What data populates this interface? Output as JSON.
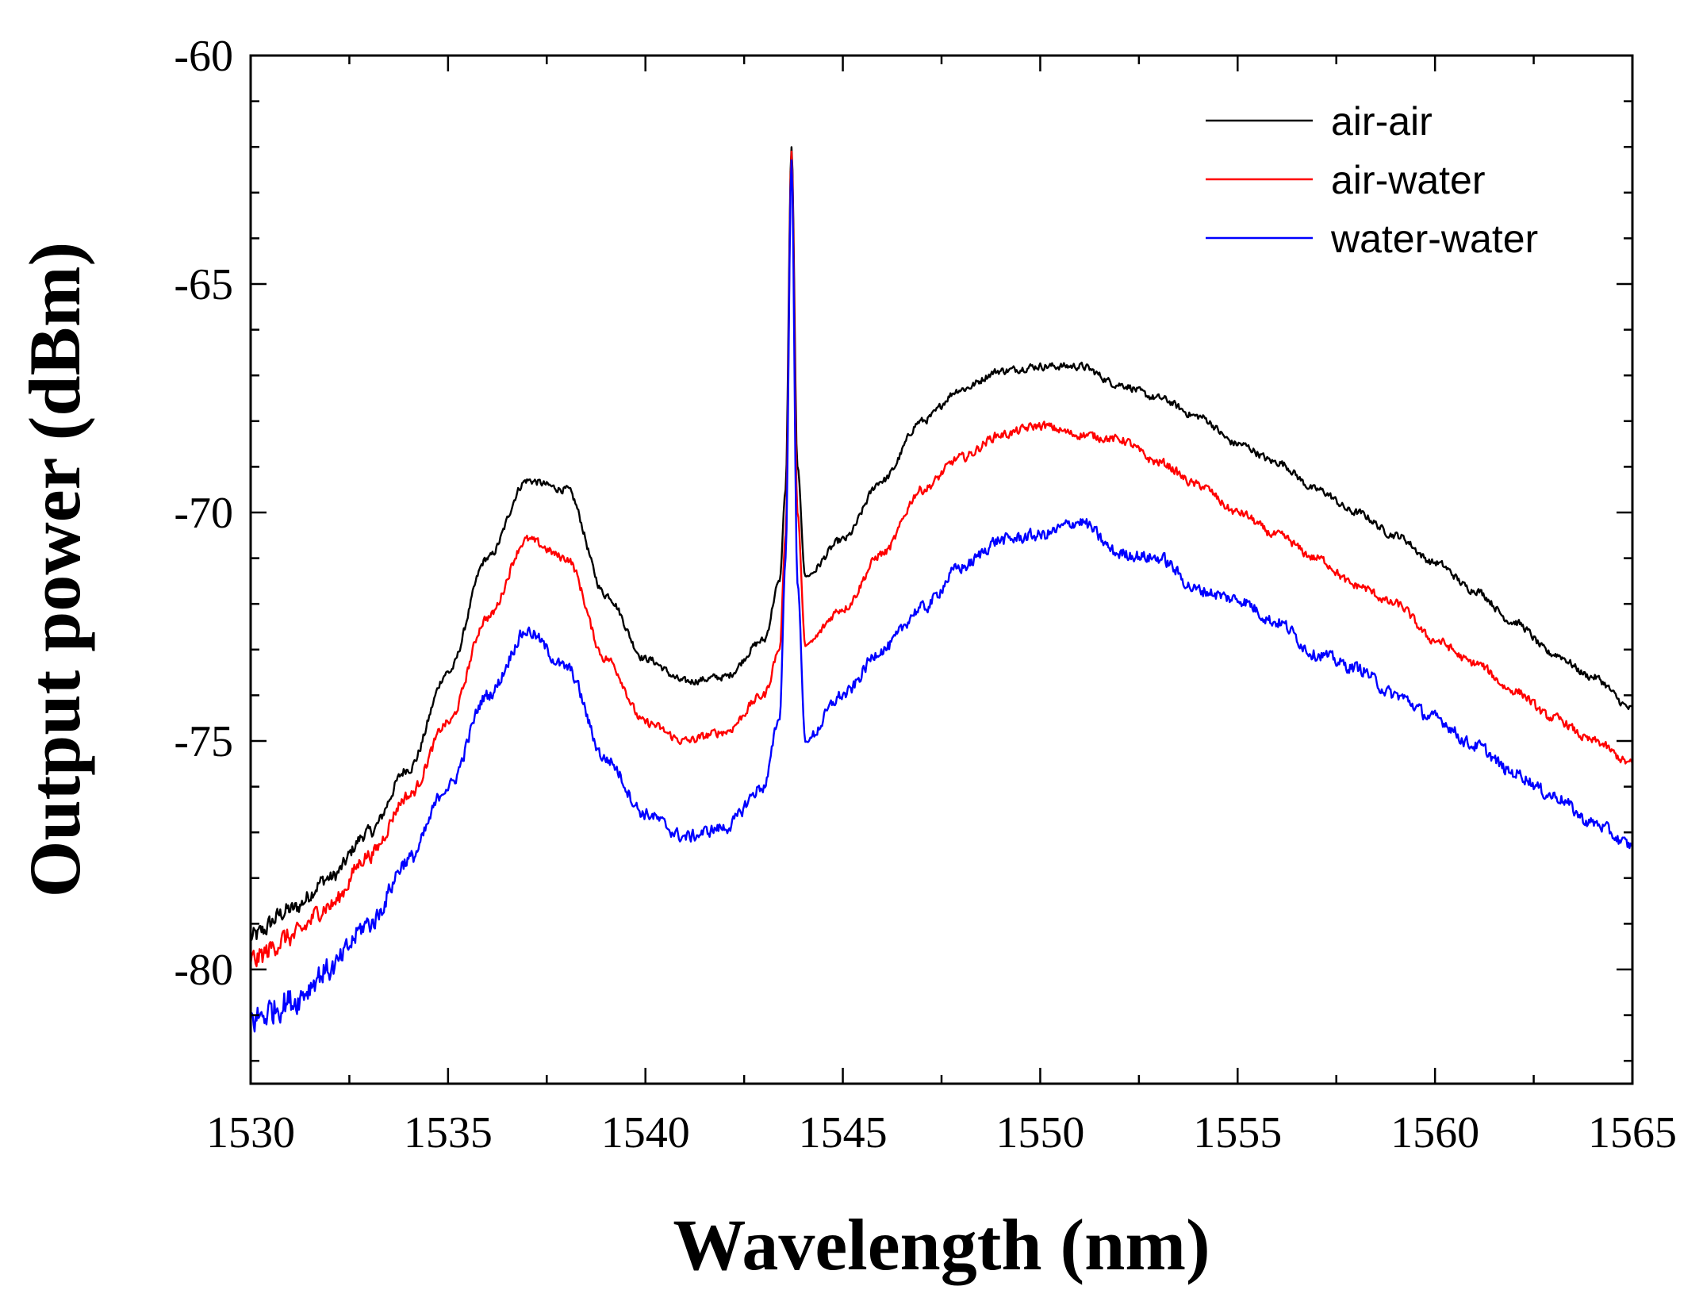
{
  "chart_data": {
    "type": "line",
    "title": "",
    "xlabel": "Wavelength (nm)",
    "ylabel": "Output power (dBm)",
    "xlim": [
      1530,
      1565
    ],
    "ylim": [
      -82.5,
      -60
    ],
    "xticks": [
      1530,
      1535,
      1540,
      1545,
      1550,
      1555,
      1560,
      1565
    ],
    "xtick_labels": [
      "1530",
      "1535",
      "1540",
      "1545",
      "1550",
      "1555",
      "1560",
      "1565"
    ],
    "yticks": [
      -60,
      -65,
      -70,
      -75,
      -80
    ],
    "ytick_labels": [
      "-60",
      "-65",
      "-70",
      "-75",
      "-80"
    ],
    "grid": false,
    "legend_position": "top-right",
    "series": [
      {
        "name": "air-air",
        "color": "#000000",
        "noise": 0.12,
        "points": [
          [
            1530,
            -79.3
          ],
          [
            1531,
            -78.7
          ],
          [
            1532,
            -78.0
          ],
          [
            1533,
            -77.0
          ],
          [
            1534,
            -75.6
          ],
          [
            1535,
            -73.5
          ],
          [
            1536,
            -71.0
          ],
          [
            1537,
            -69.3
          ],
          [
            1538,
            -69.5
          ],
          [
            1539,
            -71.8
          ],
          [
            1540,
            -73.2
          ],
          [
            1541,
            -73.7
          ],
          [
            1542,
            -73.6
          ],
          [
            1543,
            -72.8
          ],
          [
            1543.4,
            -71.5
          ],
          [
            1543.55,
            -69.5
          ],
          [
            1543.7,
            -62.0
          ],
          [
            1543.85,
            -69.0
          ],
          [
            1544.05,
            -71.4
          ],
          [
            1545,
            -70.6
          ],
          [
            1546,
            -69.3
          ],
          [
            1547,
            -68.0
          ],
          [
            1548,
            -67.3
          ],
          [
            1549,
            -66.9
          ],
          [
            1550,
            -66.8
          ],
          [
            1551,
            -66.8
          ],
          [
            1552,
            -67.2
          ],
          [
            1553,
            -67.5
          ],
          [
            1554,
            -67.9
          ],
          [
            1555,
            -68.5
          ],
          [
            1556,
            -68.9
          ],
          [
            1557,
            -69.5
          ],
          [
            1558,
            -70.0
          ],
          [
            1559,
            -70.5
          ],
          [
            1560,
            -71.1
          ],
          [
            1561,
            -71.7
          ],
          [
            1562,
            -72.4
          ],
          [
            1563,
            -73.1
          ],
          [
            1564,
            -73.6
          ],
          [
            1565,
            -74.3
          ]
        ]
      },
      {
        "name": "air-water",
        "color": "#ff0000",
        "noise": 0.14,
        "points": [
          [
            1530,
            -79.8
          ],
          [
            1531,
            -79.3
          ],
          [
            1532,
            -78.6
          ],
          [
            1533,
            -77.5
          ],
          [
            1534,
            -76.2
          ],
          [
            1535,
            -74.6
          ],
          [
            1536,
            -72.3
          ],
          [
            1537,
            -70.6
          ],
          [
            1538,
            -71.0
          ],
          [
            1539,
            -73.2
          ],
          [
            1540,
            -74.6
          ],
          [
            1541,
            -75.0
          ],
          [
            1542,
            -74.8
          ],
          [
            1543,
            -74.0
          ],
          [
            1543.4,
            -73.0
          ],
          [
            1543.55,
            -70.5
          ],
          [
            1543.7,
            -62.1
          ],
          [
            1543.85,
            -70.0
          ],
          [
            1544.05,
            -72.9
          ],
          [
            1545,
            -72.1
          ],
          [
            1546,
            -70.9
          ],
          [
            1547,
            -69.5
          ],
          [
            1548,
            -68.8
          ],
          [
            1549,
            -68.3
          ],
          [
            1550,
            -68.1
          ],
          [
            1551,
            -68.3
          ],
          [
            1552,
            -68.4
          ],
          [
            1553,
            -68.9
          ],
          [
            1554,
            -69.4
          ],
          [
            1555,
            -70.0
          ],
          [
            1556,
            -70.5
          ],
          [
            1557,
            -71.0
          ],
          [
            1558,
            -71.6
          ],
          [
            1559,
            -72.0
          ],
          [
            1560,
            -72.8
          ],
          [
            1561,
            -73.3
          ],
          [
            1562,
            -73.9
          ],
          [
            1563,
            -74.5
          ],
          [
            1564,
            -75.0
          ],
          [
            1565,
            -75.5
          ]
        ]
      },
      {
        "name": "water-water",
        "color": "#0000ff",
        "noise": 0.2,
        "points": [
          [
            1530,
            -81.1
          ],
          [
            1531,
            -80.7
          ],
          [
            1532,
            -80.0
          ],
          [
            1533,
            -79.0
          ],
          [
            1534,
            -77.6
          ],
          [
            1535,
            -76.0
          ],
          [
            1536,
            -74.0
          ],
          [
            1537,
            -72.6
          ],
          [
            1538,
            -73.4
          ],
          [
            1539,
            -75.4
          ],
          [
            1540,
            -76.6
          ],
          [
            1541,
            -77.1
          ],
          [
            1542,
            -76.9
          ],
          [
            1543,
            -76.0
          ],
          [
            1543.4,
            -74.5
          ],
          [
            1543.55,
            -71.0
          ],
          [
            1543.7,
            -62.3
          ],
          [
            1543.85,
            -71.5
          ],
          [
            1544.05,
            -75.0
          ],
          [
            1545,
            -74.0
          ],
          [
            1546,
            -73.0
          ],
          [
            1547,
            -72.1
          ],
          [
            1548,
            -71.2
          ],
          [
            1549,
            -70.6
          ],
          [
            1550,
            -70.5
          ],
          [
            1551,
            -70.2
          ],
          [
            1552,
            -70.9
          ],
          [
            1553,
            -71.0
          ],
          [
            1554,
            -71.7
          ],
          [
            1555,
            -71.9
          ],
          [
            1556,
            -72.4
          ],
          [
            1557,
            -73.1
          ],
          [
            1558,
            -73.4
          ],
          [
            1559,
            -74.0
          ],
          [
            1560,
            -74.5
          ],
          [
            1561,
            -75.1
          ],
          [
            1562,
            -75.7
          ],
          [
            1563,
            -76.2
          ],
          [
            1564,
            -76.8
          ],
          [
            1565,
            -77.3
          ]
        ]
      }
    ]
  }
}
